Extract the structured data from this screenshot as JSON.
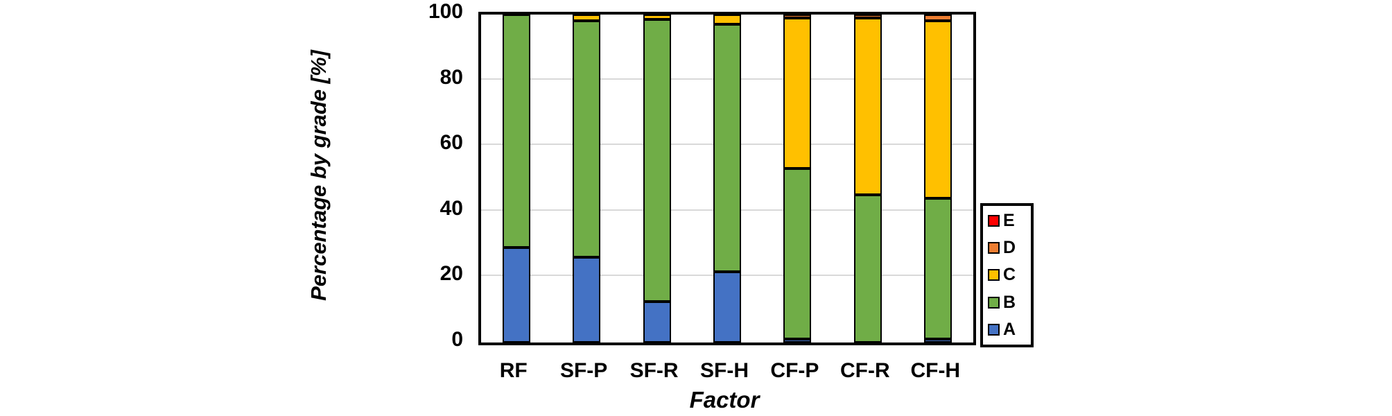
{
  "chart_data": {
    "type": "bar",
    "stacked": true,
    "title": "",
    "xlabel": "Factor",
    "ylabel": "Percentage by grade [%]",
    "ylim": [
      0,
      100
    ],
    "yticks": [
      0,
      20,
      40,
      60,
      80,
      100
    ],
    "grid": true,
    "gridline_color": "#d9d9d9",
    "legend_position": "right",
    "legend_order": [
      "E",
      "D",
      "C",
      "B",
      "A"
    ],
    "categories": [
      "RF",
      "SF-P",
      "SF-R",
      "SF-H",
      "CF-P",
      "CF-R",
      "CF-H"
    ],
    "series": [
      {
        "name": "A",
        "color": "#4472c4",
        "values": [
          29,
          26,
          12.5,
          21.5,
          1,
          0,
          1
        ]
      },
      {
        "name": "B",
        "color": "#70ad47",
        "values": [
          71,
          72,
          86,
          75.5,
          52,
          45,
          43
        ]
      },
      {
        "name": "C",
        "color": "#ffc000",
        "values": [
          0,
          2,
          1.5,
          3,
          46,
          54,
          54
        ]
      },
      {
        "name": "D",
        "color": "#ed7d31",
        "values": [
          0,
          0,
          0,
          0,
          1,
          1,
          2
        ]
      },
      {
        "name": "E",
        "color": "#ff0000",
        "values": [
          0,
          0,
          0,
          0,
          0,
          0,
          0
        ]
      }
    ]
  }
}
